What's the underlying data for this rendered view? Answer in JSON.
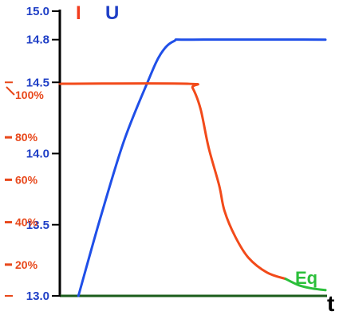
{
  "chart_data": {
    "type": "line",
    "axis_labels": {
      "current": "I",
      "voltage": "U",
      "time": "t"
    },
    "voltage_axis": {
      "ylim": [
        13.0,
        15.0
      ],
      "ticks": [
        {
          "value": 15.0,
          "label": "15.0"
        },
        {
          "value": 14.8,
          "label": "14.8"
        },
        {
          "value": 14.5,
          "label": "14.5"
        },
        {
          "value": 14.0,
          "label": "14.0"
        },
        {
          "value": 13.5,
          "label": "13.5"
        },
        {
          "value": 13.0,
          "label": "13.0"
        }
      ]
    },
    "current_axis": {
      "ticks": [
        {
          "value": 100,
          "label": "100%"
        },
        {
          "value": 80,
          "label": "80%"
        },
        {
          "value": 60,
          "label": "60%"
        },
        {
          "value": 40,
          "label": "40%"
        },
        {
          "value": 20,
          "label": "20%"
        }
      ]
    },
    "xlim": [
      0,
      100
    ],
    "series": [
      {
        "name": "U",
        "axis": "voltage",
        "color": "#1f4fe8",
        "points": [
          [
            7,
            13.0
          ],
          [
            15,
            13.53
          ],
          [
            24,
            14.08
          ],
          [
            33,
            14.5
          ],
          [
            38,
            14.7
          ],
          [
            43,
            14.79
          ],
          [
            50,
            14.8
          ],
          [
            100,
            14.8
          ]
        ]
      },
      {
        "name": "I",
        "axis": "current",
        "color": "#f24a1a",
        "points": [
          [
            0,
            100
          ],
          [
            48,
            100
          ],
          [
            50,
            98
          ],
          [
            53,
            88
          ],
          [
            56,
            70
          ],
          [
            60,
            52
          ],
          [
            62,
            40
          ],
          [
            66,
            28
          ],
          [
            71,
            18
          ],
          [
            78,
            11
          ],
          [
            85,
            8
          ]
        ]
      },
      {
        "name": "Eq",
        "axis": "current",
        "color": "#2bbf3a",
        "label": "Eq",
        "points": [
          [
            85,
            8
          ],
          [
            90,
            5
          ],
          [
            95,
            3.5
          ],
          [
            100,
            2.7
          ]
        ]
      }
    ],
    "colors": {
      "voltage_axis": "#1f3fc6",
      "current_axis": "#e8481b",
      "equalization": "#2bbf3a",
      "time_axis": "#1b5c1b"
    }
  }
}
